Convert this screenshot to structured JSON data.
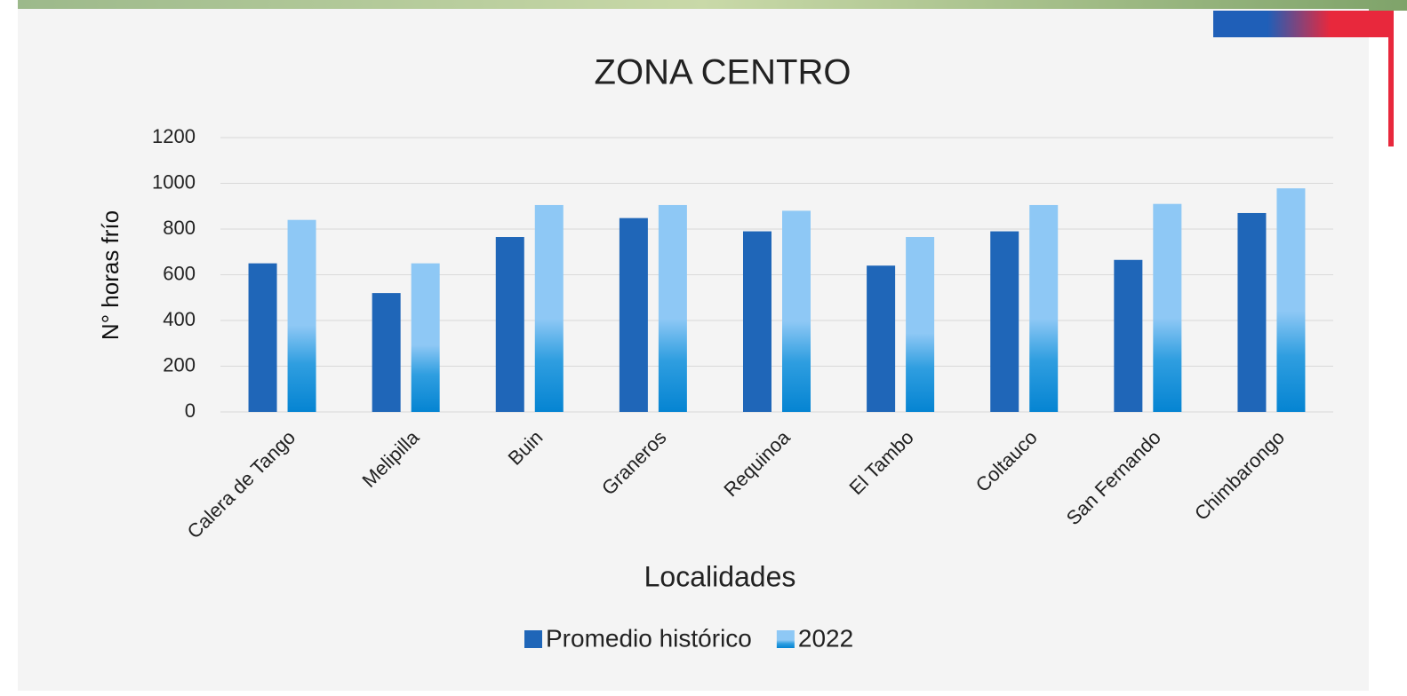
{
  "chart_data": {
    "type": "bar",
    "title": "ZONA CENTRO",
    "x_label": "Localidades",
    "y_label": "N° horas frío",
    "categories": [
      "Calera de Tango",
      "Melipilla",
      "Buin",
      "Graneros",
      "Requinoa",
      "El Tambo",
      "Coltauco",
      "San Fernando",
      "Chimbarongo"
    ],
    "series": [
      {
        "name": "Promedio histórico",
        "color": "#1f66b8",
        "values": [
          650,
          520,
          765,
          848,
          790,
          640,
          790,
          665,
          870
        ]
      },
      {
        "name": "2022",
        "color": "#8ec8f5",
        "values": [
          840,
          650,
          905,
          905,
          880,
          765,
          905,
          910,
          978
        ]
      }
    ],
    "ylim": [
      0,
      1200
    ],
    "yticks": [
      0,
      200,
      400,
      600,
      800,
      1000,
      1200
    ],
    "grid": true,
    "legend": "bottom"
  }
}
